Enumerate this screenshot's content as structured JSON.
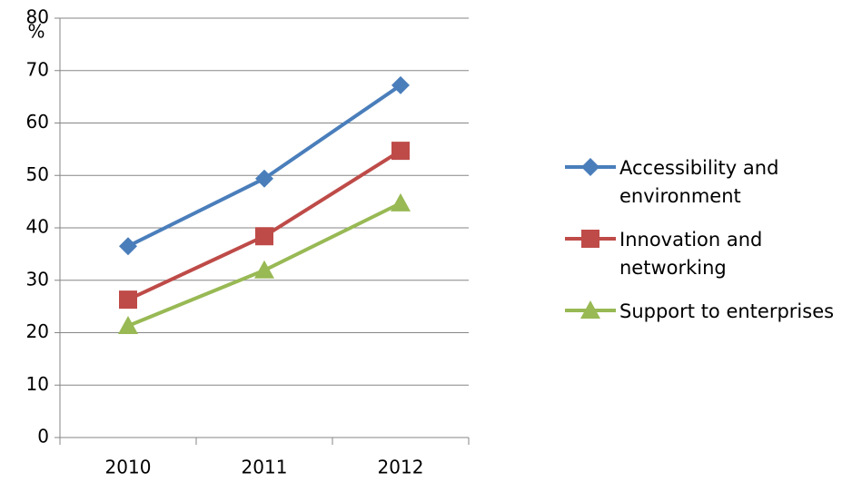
{
  "chart_data": {
    "type": "line",
    "y_label": "%",
    "categories": [
      "2010",
      "2011",
      "2012"
    ],
    "series": [
      {
        "name": "Accessibility and environment",
        "color": "#4a7ebb",
        "marker": "diamond",
        "values": [
          36.5,
          49.4,
          67.2
        ]
      },
      {
        "name": "Innovation and networking",
        "color": "#be4b48",
        "marker": "square",
        "values": [
          26.3,
          38.4,
          54.7
        ]
      },
      {
        "name": "Support to enterprises",
        "color": "#98b954",
        "marker": "triangle",
        "values": [
          21.3,
          31.9,
          44.7
        ]
      }
    ],
    "ylim": [
      0,
      80
    ],
    "yticks": [
      0,
      10,
      20,
      30,
      40,
      50,
      60,
      70,
      80
    ],
    "grid": true,
    "legend": "right"
  }
}
